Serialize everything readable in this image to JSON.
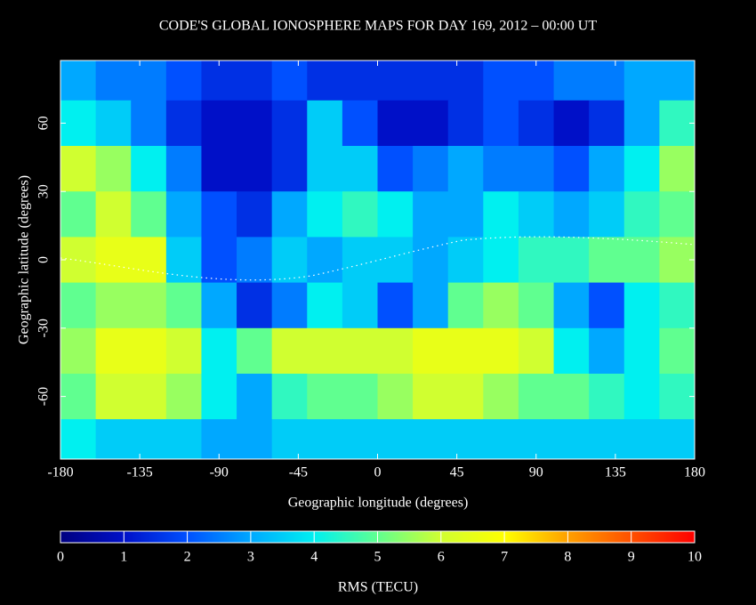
{
  "chart_data": {
    "type": "heatmap",
    "title": "CODE'S GLOBAL IONOSPHERE MAPS FOR DAY 169, 2012 – 00:00 UT",
    "xlabel": "Geographic longitude (degrees)",
    "ylabel": "Geographic latitude (degrees)",
    "xlim": [
      -180,
      180
    ],
    "ylim": [
      -87.5,
      87.5
    ],
    "xticks": [
      -180,
      -135,
      -90,
      -45,
      0,
      45,
      90,
      135,
      180
    ],
    "yticks": [
      -60,
      -30,
      0,
      30,
      60
    ],
    "x": [
      -170,
      -150,
      -130,
      -110,
      -90,
      -70,
      -50,
      -30,
      -10,
      10,
      30,
      50,
      70,
      90,
      110,
      130,
      150,
      170
    ],
    "y": [
      80,
      60,
      40,
      20,
      0,
      -20,
      -40,
      -60,
      -80
    ],
    "values": [
      [
        3,
        2.5,
        2.5,
        2,
        1.5,
        1.5,
        2,
        1.5,
        1.5,
        1.5,
        1.5,
        1.5,
        2,
        2,
        2.5,
        2.5,
        3,
        3
      ],
      [
        4,
        3.5,
        2.5,
        1.5,
        1,
        1,
        1.5,
        3.5,
        2,
        1,
        1,
        1.5,
        2,
        1.5,
        1,
        1.5,
        3,
        4.5
      ],
      [
        6,
        5.5,
        4,
        2.5,
        1,
        1,
        1.5,
        3.5,
        3.5,
        2,
        2.5,
        3,
        2.5,
        2.5,
        2,
        3,
        4,
        5.5
      ],
      [
        5,
        6,
        5,
        3,
        2,
        1.5,
        3,
        4,
        4.5,
        4,
        3,
        3,
        4,
        3.5,
        3,
        3.5,
        4.5,
        5
      ],
      [
        6,
        6.5,
        6.5,
        3.5,
        2,
        2.5,
        3.5,
        3,
        3.5,
        3.5,
        3,
        3.5,
        4,
        4.5,
        4.5,
        5,
        5,
        5.5
      ],
      [
        5,
        5.5,
        5.5,
        5,
        3,
        1.5,
        2.5,
        4,
        3.5,
        2,
        3,
        5,
        5.5,
        5,
        3,
        2,
        4,
        4.5
      ],
      [
        5.5,
        6.5,
        6.5,
        6,
        4,
        5,
        6,
        6,
        6,
        6,
        6.5,
        6.5,
        6.5,
        6,
        4,
        3,
        4,
        5
      ],
      [
        5,
        6,
        6,
        5.5,
        4,
        3,
        4.5,
        5,
        5,
        5.5,
        6,
        6,
        5.5,
        5,
        5,
        4.5,
        4,
        4.5
      ],
      [
        4,
        3.5,
        3.5,
        3.5,
        3,
        3,
        3.5,
        3.5,
        3.5,
        3.5,
        3.5,
        3.5,
        3.5,
        3.5,
        3.5,
        3.5,
        3.5,
        3.5
      ]
    ],
    "colorbar": {
      "label": "RMS (TECU)",
      "lim": [
        0,
        10
      ],
      "ticks": [
        0,
        1,
        2,
        3,
        4,
        5,
        6,
        7,
        8,
        9,
        10
      ],
      "colors": [
        "#000080",
        "#0010c8",
        "#0050ff",
        "#00a8ff",
        "#00f0f0",
        "#60ff90",
        "#d0ff30",
        "#ffff00",
        "#ffa000",
        "#ff5000",
        "#ff0000"
      ]
    }
  }
}
